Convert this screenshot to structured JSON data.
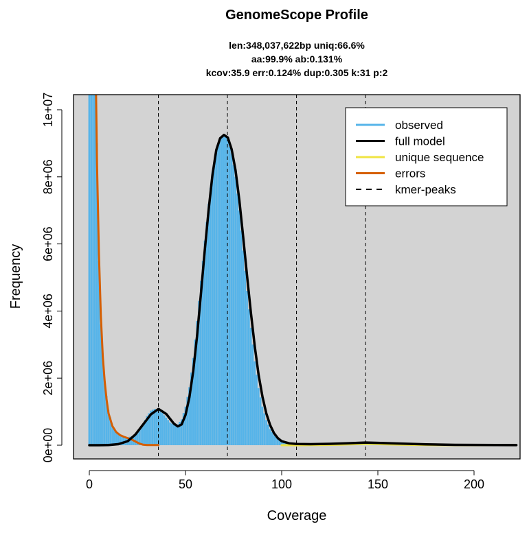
{
  "chart_data": {
    "type": "area",
    "title": "GenomeScope Profile",
    "subtitle_lines": [
      "len:348,037,622bp uniq:66.6%",
      "aa:99.9% ab:0.131%",
      "kcov:35.9 err:0.124%  dup:0.305  k:31 p:2"
    ],
    "xlabel": "Coverage",
    "ylabel": "Frequency",
    "xlim": [
      0,
      222
    ],
    "ylim": [
      0,
      10500000
    ],
    "x_ticks": [
      0,
      50,
      100,
      150,
      200
    ],
    "x_tick_labels": [
      "0",
      "50",
      "100",
      "150",
      "200"
    ],
    "y_ticks": [
      0,
      2000000,
      4000000,
      6000000,
      8000000,
      10000000
    ],
    "y_tick_labels": [
      "0e+00",
      "2e+06",
      "4e+06",
      "6e+06",
      "8e+06",
      "1e+07"
    ],
    "kmer_peaks": [
      35.9,
      71.8,
      107.7,
      143.6
    ],
    "legend": {
      "position": "top-right",
      "entries": [
        {
          "label": "observed",
          "color": "#56b4e9",
          "style": "solid"
        },
        {
          "label": "full model",
          "color": "#000000",
          "style": "solid"
        },
        {
          "label": "unique sequence",
          "color": "#f0e442",
          "style": "solid"
        },
        {
          "label": "errors",
          "color": "#d55e00",
          "style": "solid"
        },
        {
          "label": "kmer-peaks",
          "color": "#000000",
          "style": "dashed"
        }
      ]
    },
    "colors": {
      "panel_background": "#d3d3d3",
      "observed": "#56b4e9",
      "full_model": "#000000",
      "unique_sequence": "#f0e442",
      "errors": "#d55e00"
    },
    "series": [
      {
        "name": "observed",
        "x": [
          0,
          1,
          2,
          3,
          4,
          5,
          6,
          8,
          10,
          12,
          14,
          16,
          18,
          20,
          22,
          24,
          26,
          28,
          30,
          32,
          34,
          36,
          38,
          40,
          42,
          44,
          46,
          48,
          50,
          52,
          54,
          56,
          58,
          60,
          62,
          64,
          66,
          68,
          70,
          72,
          74,
          76,
          78,
          80,
          82,
          84,
          86,
          88,
          90,
          92,
          94,
          96,
          98,
          100,
          102,
          104,
          106,
          108,
          110,
          115,
          120,
          130,
          140,
          150,
          160,
          180,
          200,
          222
        ],
        "values": [
          10500000,
          10500000,
          10500000,
          10500000,
          9000000,
          5500000,
          3600000,
          1900000,
          1050000,
          600000,
          380000,
          290000,
          260000,
          240000,
          260000,
          300000,
          420000,
          640000,
          870000,
          1030000,
          1080000,
          1050000,
          960000,
          820000,
          680000,
          610000,
          620000,
          770000,
          1150000,
          1730000,
          2600000,
          3700000,
          4900000,
          6100000,
          7200000,
          8150000,
          8800000,
          9150000,
          9250000,
          9100000,
          8700000,
          8000000,
          7000000,
          5800000,
          4600000,
          3500000,
          2500000,
          1700000,
          1150000,
          750000,
          480000,
          300000,
          190000,
          120000,
          90000,
          70000,
          60000,
          50000,
          45000,
          40000,
          40000,
          45000,
          55000,
          55000,
          40000,
          20000,
          10000,
          5000
        ]
      },
      {
        "name": "full model",
        "x": [
          0,
          5,
          10,
          15,
          20,
          24,
          28,
          32,
          36,
          40,
          44,
          46,
          48,
          50,
          52,
          54,
          56,
          58,
          60,
          62,
          64,
          66,
          68,
          70,
          72,
          74,
          76,
          78,
          80,
          82,
          84,
          86,
          88,
          90,
          92,
          94,
          96,
          98,
          100,
          104,
          108,
          115,
          125,
          135,
          143.6,
          150,
          160,
          175,
          190,
          222
        ],
        "values": [
          0,
          0,
          5000,
          30000,
          120000,
          320000,
          620000,
          920000,
          1080000,
          930000,
          640000,
          560000,
          620000,
          900000,
          1420000,
          2200000,
          3250000,
          4500000,
          5800000,
          7000000,
          8050000,
          8800000,
          9150000,
          9250000,
          9170000,
          8820000,
          8200000,
          7300000,
          6200000,
          5050000,
          3950000,
          2950000,
          2100000,
          1450000,
          950000,
          600000,
          360000,
          210000,
          120000,
          55000,
          35000,
          30000,
          40000,
          60000,
          80000,
          70000,
          50000,
          25000,
          10000,
          3000
        ]
      },
      {
        "name": "unique sequence",
        "x": [
          100,
          110,
          120,
          130,
          136,
          140,
          143.6,
          147,
          151,
          158,
          168,
          180,
          195,
          210,
          222
        ],
        "values": [
          0,
          1000,
          5000,
          15000,
          26000,
          34000,
          38000,
          36000,
          30000,
          20000,
          9000,
          3000,
          1000,
          500,
          0
        ]
      },
      {
        "name": "errors",
        "x": [
          3.5,
          4,
          5,
          6,
          7,
          8,
          9,
          10,
          12,
          14,
          16,
          18,
          20,
          22,
          24,
          26,
          28,
          30,
          32,
          34,
          35.9
        ],
        "values": [
          10500000,
          8400000,
          5700000,
          3850000,
          2650000,
          1900000,
          1350000,
          950000,
          570000,
          390000,
          300000,
          250000,
          210000,
          170000,
          110000,
          50000,
          15000,
          5000,
          5000,
          5000,
          5000
        ]
      }
    ]
  }
}
